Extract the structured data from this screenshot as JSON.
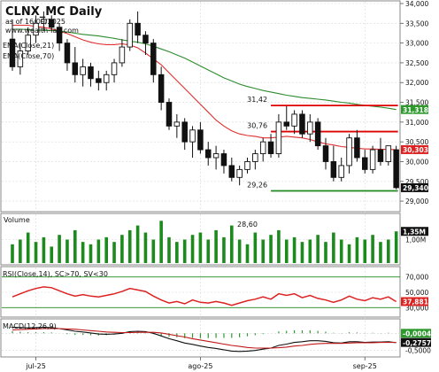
{
  "chart_data": [
    {
      "type": "candlestick",
      "title": "CLNX_MC Daily",
      "subtitle": "as of 16/09/2025",
      "watermark": "www.wealth-lab.com",
      "ylim": [
        28.8,
        34.0
      ],
      "y_ticks": [
        "34,000",
        "33,500",
        "33,000",
        "32,500",
        "32,000",
        "31,500",
        "31,000",
        "30,500",
        "30,000",
        "29,500",
        "29,000"
      ],
      "y_tick_values": [
        34.0,
        33.5,
        33.0,
        32.5,
        32.0,
        31.5,
        31.0,
        30.5,
        30.0,
        29.5,
        29.0
      ],
      "x_tick_labels": [
        "jul-25",
        "ago-25",
        "sep-25"
      ],
      "x_tick_index": [
        3,
        24,
        45
      ],
      "legend": [
        "EMA(Close,21)",
        "EMA(Close,70)"
      ],
      "series": [
        {
          "name": "EMA(Close,21)",
          "color": "#e03030",
          "values": [
            33.45,
            33.45,
            33.45,
            33.42,
            33.4,
            33.36,
            33.3,
            33.24,
            33.16,
            33.08,
            33.02,
            32.98,
            32.96,
            32.96,
            32.98,
            32.95,
            32.88,
            32.75,
            32.6,
            32.45,
            32.25,
            32.05,
            31.85,
            31.65,
            31.45,
            31.25,
            31.05,
            30.9,
            30.78,
            30.7,
            30.66,
            30.64,
            30.6,
            30.6,
            30.62,
            30.64,
            30.62,
            30.6,
            30.56,
            30.5,
            30.45,
            30.42,
            30.38,
            30.36,
            30.34,
            30.32,
            30.32,
            30.31,
            30.31,
            30.3
          ]
        },
        {
          "name": "EMA(Close,70)",
          "color": "#2e8b2e",
          "values": [
            33.35,
            33.35,
            33.34,
            33.33,
            33.32,
            33.32,
            33.3,
            33.28,
            33.25,
            33.22,
            33.2,
            33.18,
            33.15,
            33.12,
            33.08,
            33.05,
            33.02,
            32.98,
            32.92,
            32.85,
            32.78,
            32.7,
            32.62,
            32.52,
            32.42,
            32.32,
            32.22,
            32.12,
            32.04,
            31.96,
            31.9,
            31.85,
            31.8,
            31.76,
            31.72,
            31.68,
            31.65,
            31.62,
            31.6,
            31.58,
            31.56,
            31.53,
            31.5,
            31.48,
            31.45,
            31.42,
            31.4,
            31.38,
            31.35,
            31.318
          ]
        }
      ],
      "ohlc": [
        [
          33.1,
          33.6,
          32.3,
          32.4
        ],
        [
          32.4,
          33.0,
          32.2,
          32.8
        ],
        [
          32.8,
          33.4,
          32.7,
          33.2
        ],
        [
          33.2,
          33.7,
          33.0,
          33.5
        ],
        [
          33.5,
          33.8,
          33.3,
          33.6
        ],
        [
          33.6,
          33.7,
          33.3,
          33.4
        ],
        [
          33.4,
          33.5,
          32.8,
          33.0
        ],
        [
          33.0,
          33.1,
          32.3,
          32.5
        ],
        [
          32.5,
          32.9,
          32.0,
          32.2
        ],
        [
          32.2,
          32.6,
          31.9,
          32.4
        ],
        [
          32.4,
          32.5,
          31.9,
          32.1
        ],
        [
          32.1,
          32.3,
          31.8,
          32.0
        ],
        [
          32.0,
          32.3,
          31.8,
          32.2
        ],
        [
          32.2,
          32.6,
          32.0,
          32.5
        ],
        [
          32.5,
          33.1,
          32.4,
          32.9
        ],
        [
          32.9,
          33.6,
          32.8,
          33.5
        ],
        [
          33.5,
          33.8,
          33.0,
          33.2
        ],
        [
          33.2,
          33.3,
          32.7,
          33.0
        ],
        [
          33.0,
          33.1,
          32.0,
          32.2
        ],
        [
          32.2,
          32.4,
          31.3,
          31.5
        ],
        [
          31.5,
          31.6,
          30.8,
          30.9
        ],
        [
          30.9,
          31.2,
          30.6,
          31.0
        ],
        [
          31.0,
          31.1,
          30.3,
          30.5
        ],
        [
          30.5,
          30.9,
          30.1,
          30.8
        ],
        [
          30.8,
          31.0,
          30.2,
          30.3
        ],
        [
          30.3,
          30.5,
          29.9,
          30.1
        ],
        [
          30.1,
          30.4,
          29.8,
          30.2
        ],
        [
          30.2,
          30.3,
          29.7,
          29.9
        ],
        [
          29.9,
          30.1,
          29.5,
          29.6
        ],
        [
          29.6,
          29.9,
          29.4,
          29.8
        ],
        [
          29.8,
          30.1,
          29.7,
          30.0
        ],
        [
          30.0,
          30.3,
          29.8,
          30.2
        ],
        [
          30.2,
          30.6,
          30.0,
          30.5
        ],
        [
          30.5,
          30.7,
          30.1,
          30.2
        ],
        [
          30.2,
          31.2,
          30.1,
          31.0
        ],
        [
          31.0,
          31.4,
          30.8,
          30.9
        ],
        [
          30.9,
          31.3,
          30.7,
          31.2
        ],
        [
          31.2,
          31.3,
          30.6,
          30.7
        ],
        [
          30.7,
          31.2,
          30.5,
          31.0
        ],
        [
          31.0,
          31.1,
          30.3,
          30.4
        ],
        [
          30.4,
          30.6,
          29.8,
          30.0
        ],
        [
          30.0,
          30.4,
          29.5,
          29.6
        ],
        [
          29.6,
          30.1,
          29.5,
          29.9
        ],
        [
          29.9,
          30.7,
          29.7,
          30.6
        ],
        [
          30.6,
          30.8,
          30.0,
          30.1
        ],
        [
          30.1,
          30.3,
          29.7,
          29.8
        ],
        [
          29.8,
          30.4,
          29.7,
          30.3
        ],
        [
          30.3,
          30.6,
          29.9,
          30.0
        ],
        [
          30.0,
          30.4,
          29.9,
          30.4
        ],
        [
          30.3,
          30.4,
          29.3,
          29.34
        ]
      ],
      "reference_lines": [
        {
          "label": "31,42",
          "value": 31.42,
          "color": "#dd0000"
        },
        {
          "label": "30,76",
          "value": 30.76,
          "color": "#dd0000"
        },
        {
          "label": "29,26",
          "value": 29.26,
          "color": "#1f8a1f"
        }
      ],
      "price_tags": [
        {
          "label": "31,318",
          "value": 31.318,
          "bg": "#2e9a2e"
        },
        {
          "label": "30,303",
          "value": 30.303,
          "bg": "#dd2222"
        },
        {
          "label": "29,340",
          "value": 29.34,
          "bg": "#111111"
        }
      ]
    },
    {
      "type": "bar",
      "title": "Volume",
      "annotation": "28,60",
      "ylim": [
        0,
        2.0
      ],
      "y_ticks": [
        "1,00M"
      ],
      "y_tick_values": [
        1.0
      ],
      "values": [
        0.8,
        1.0,
        1.3,
        0.9,
        1.1,
        0.7,
        1.2,
        1.0,
        1.4,
        0.9,
        0.8,
        1.0,
        1.1,
        0.9,
        1.2,
        1.4,
        1.6,
        1.3,
        1.0,
        1.8,
        1.1,
        0.9,
        1.0,
        1.2,
        1.3,
        1.0,
        1.4,
        1.1,
        1.6,
        1.0,
        0.8,
        1.3,
        1.0,
        1.2,
        1.4,
        1.0,
        1.1,
        0.9,
        1.0,
        1.2,
        0.9,
        1.3,
        1.0,
        0.8,
        1.1,
        1.0,
        1.2,
        0.9,
        1.0,
        1.35
      ],
      "last_label": "1,35M"
    },
    {
      "type": "line",
      "title": "RSI(Close,14), SC>70, SV<30",
      "ylim": [
        20,
        80
      ],
      "y_ticks": [
        "70,000",
        "50,000",
        "30,000"
      ],
      "y_tick_values": [
        70,
        50,
        30
      ],
      "series": [
        {
          "name": "RSI(Close,14)",
          "color": "#dd2222",
          "values": [
            44,
            48,
            52,
            55,
            57,
            56,
            52,
            48,
            45,
            47,
            45,
            44,
            46,
            48,
            51,
            55,
            53,
            51,
            45,
            40,
            36,
            38,
            35,
            40,
            37,
            36,
            38,
            36,
            33,
            36,
            39,
            41,
            44,
            41,
            48,
            46,
            48,
            43,
            46,
            42,
            40,
            37,
            40,
            45,
            41,
            39,
            43,
            41,
            44,
            37.881
          ]
        }
      ],
      "last_label": "37,881"
    },
    {
      "type": "line",
      "title": "MACD(12,26,9)",
      "ylim": [
        -0.65,
        0.35
      ],
      "y_ticks": [
        "0,0000",
        "-0,5000"
      ],
      "y_tick_values": [
        0.0,
        -0.5
      ],
      "series": [
        {
          "name": "MACD",
          "color": "#111111",
          "values": [
            0.18,
            0.17,
            0.16,
            0.17,
            0.18,
            0.17,
            0.14,
            0.1,
            0.06,
            0.04,
            0.01,
            -0.02,
            -0.03,
            -0.02,
            0.0,
            0.05,
            0.06,
            0.05,
            0.0,
            -0.08,
            -0.16,
            -0.22,
            -0.29,
            -0.33,
            -0.38,
            -0.42,
            -0.45,
            -0.49,
            -0.53,
            -0.54,
            -0.53,
            -0.51,
            -0.47,
            -0.44,
            -0.36,
            -0.32,
            -0.27,
            -0.25,
            -0.22,
            -0.22,
            -0.24,
            -0.28,
            -0.29,
            -0.25,
            -0.25,
            -0.27,
            -0.26,
            -0.26,
            -0.25,
            -0.2757
          ]
        },
        {
          "name": "Signal",
          "color": "#c01818",
          "values": [
            0.1,
            0.11,
            0.12,
            0.13,
            0.14,
            0.14,
            0.14,
            0.13,
            0.12,
            0.1,
            0.08,
            0.06,
            0.04,
            0.03,
            0.02,
            0.02,
            0.03,
            0.03,
            0.03,
            0.01,
            -0.03,
            -0.07,
            -0.11,
            -0.16,
            -0.2,
            -0.24,
            -0.28,
            -0.32,
            -0.36,
            -0.39,
            -0.42,
            -0.44,
            -0.44,
            -0.44,
            -0.43,
            -0.41,
            -0.38,
            -0.36,
            -0.33,
            -0.31,
            -0.3,
            -0.3,
            -0.3,
            -0.29,
            -0.28,
            -0.28,
            -0.28,
            -0.27,
            -0.27,
            -0.272
          ]
        }
      ],
      "last_label_1": "-0,0004",
      "last_label_2": "-0,2757"
    }
  ]
}
